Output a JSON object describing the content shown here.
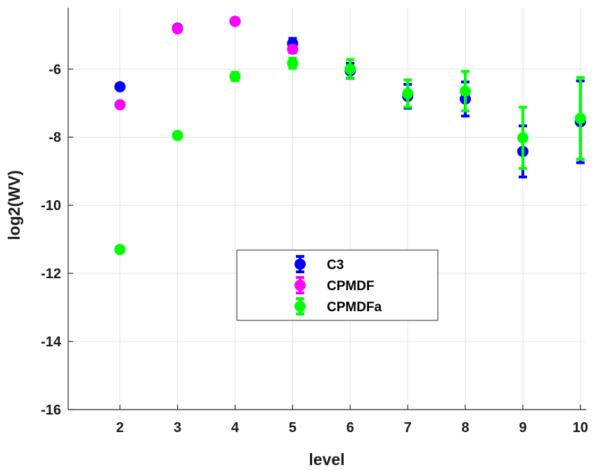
{
  "chart_data": {
    "type": "scatter",
    "xlabel": "level",
    "ylabel": "log2(WV)",
    "xlim": [
      1.1,
      10.1
    ],
    "ylim": [
      -16,
      -4.2
    ],
    "xticks": [
      2,
      3,
      4,
      5,
      6,
      7,
      8,
      9,
      10
    ],
    "yticks": [
      -16,
      -14,
      -12,
      -10,
      -8,
      -6
    ],
    "grid": true,
    "legend_position": "center",
    "series": [
      {
        "name": "C3",
        "color": "#0000ff",
        "x": [
          2,
          3,
          4,
          5,
          6,
          7,
          8,
          9,
          10
        ],
        "y": [
          -6.52,
          -4.8,
          -4.6,
          -5.25,
          -6.05,
          -6.8,
          -6.88,
          -8.42,
          -7.55
        ],
        "err": [
          0.0,
          0.0,
          0.04,
          0.15,
          0.22,
          0.35,
          0.5,
          0.75,
          1.2
        ]
      },
      {
        "name": "CPMDF",
        "color": "#ff00ff",
        "x": [
          2,
          3,
          4,
          5
        ],
        "y": [
          -7.05,
          -4.82,
          -4.6,
          -5.42
        ],
        "err": [
          0.0,
          0.0,
          0.04,
          0.1
        ]
      },
      {
        "name": "CPMDFa",
        "color": "#00ff00",
        "x": [
          2,
          3,
          4,
          5,
          6,
          7,
          8,
          9,
          10
        ],
        "y": [
          -11.3,
          -7.95,
          -6.22,
          -5.83,
          -6.0,
          -6.72,
          -6.65,
          -8.02,
          -7.45
        ],
        "err": [
          0.0,
          0.0,
          0.12,
          0.15,
          0.28,
          0.4,
          0.58,
          0.9,
          1.2
        ]
      }
    ]
  }
}
